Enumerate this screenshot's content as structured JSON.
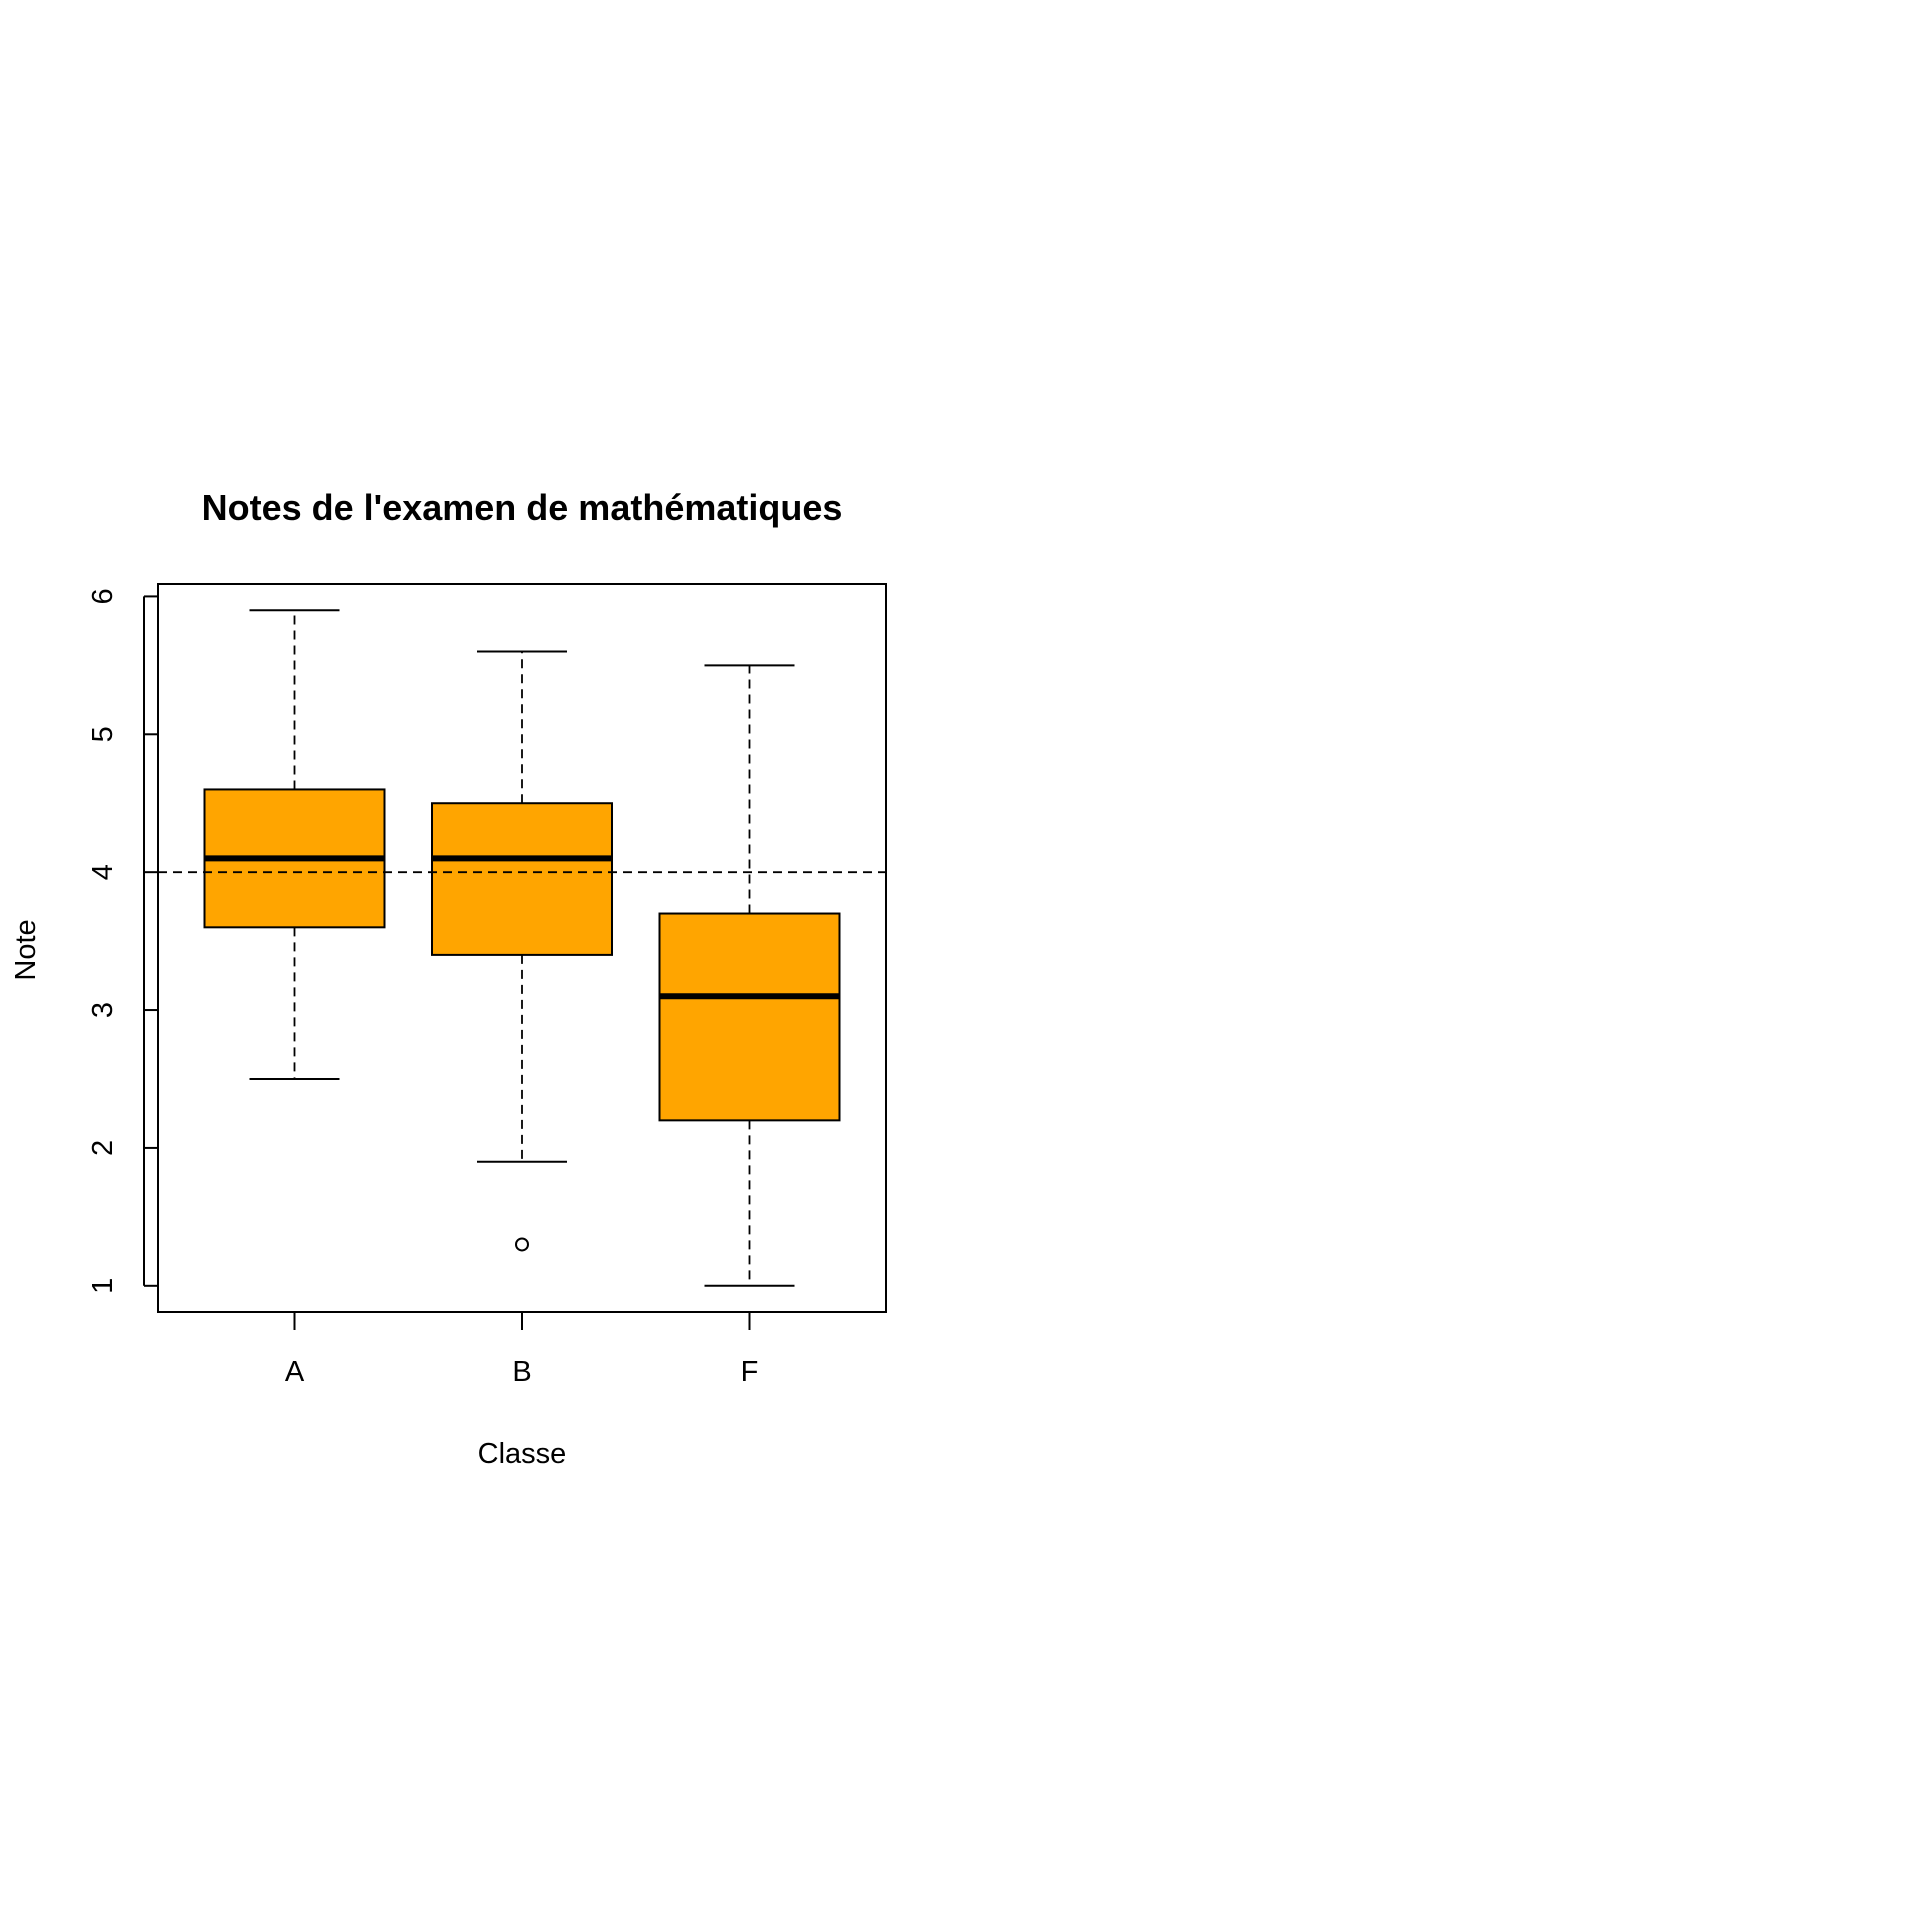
{
  "chart_data": {
    "type": "boxplot",
    "title": "Notes de l'examen de mathématiques",
    "xlabel": "Classe",
    "ylabel": "Note",
    "ylim": [
      0.81,
      6.09
    ],
    "y_ticks": [
      1,
      2,
      3,
      4,
      5,
      6
    ],
    "categories": [
      "A",
      "B",
      "F"
    ],
    "series": [
      {
        "category": "A",
        "min": 2.5,
        "q1": 3.6,
        "median": 4.1,
        "q3": 4.6,
        "max": 5.9,
        "outliers": []
      },
      {
        "category": "B",
        "min": 1.9,
        "q1": 3.4,
        "median": 4.1,
        "q3": 4.5,
        "max": 5.6,
        "outliers": [
          1.3
        ]
      },
      {
        "category": "F",
        "min": 1.0,
        "q1": 2.2,
        "median": 3.1,
        "q3": 3.7,
        "max": 5.5,
        "outliers": []
      }
    ],
    "reference_line": {
      "y": 4,
      "style": "dashed"
    },
    "box_color": "#FFA500",
    "grid": false,
    "legend": "none"
  }
}
